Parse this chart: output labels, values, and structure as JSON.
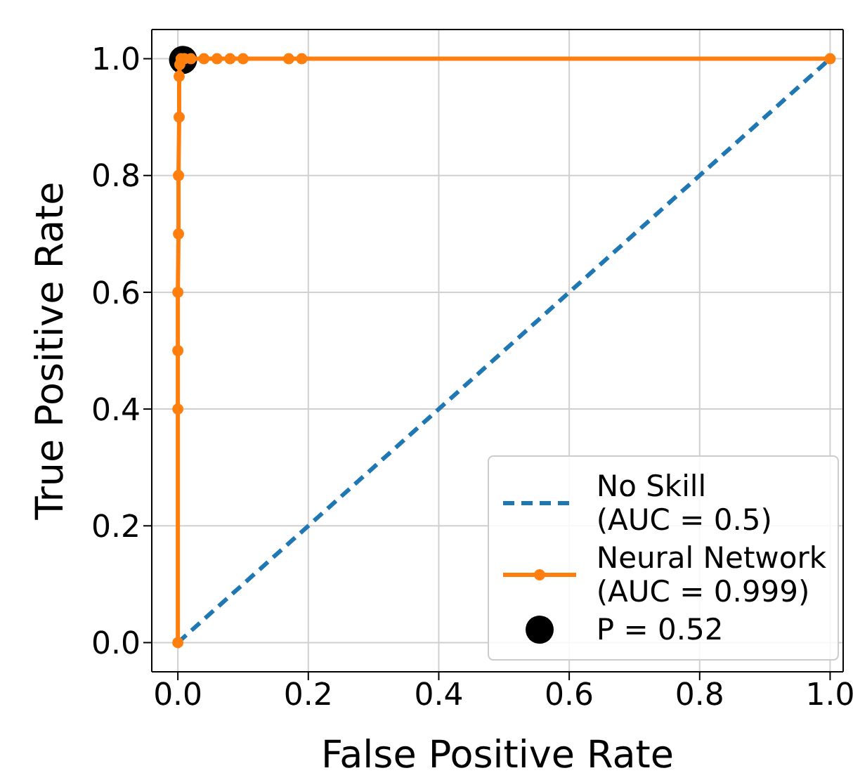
{
  "chart_data": {
    "type": "line",
    "xlabel": "False Positive Rate",
    "ylabel": "True Positive Rate",
    "xlim": [
      -0.04,
      1.02
    ],
    "ylim": [
      -0.05,
      1.05
    ],
    "xticks": [
      {
        "value": 0,
        "label": "0.0"
      },
      0.2,
      0.4,
      0.6,
      0.8,
      {
        "value": 1,
        "label": "1.0"
      }
    ],
    "yticks": [
      {
        "value": 0,
        "label": "0.0"
      },
      0.2,
      0.4,
      0.6,
      0.8,
      {
        "value": 1,
        "label": "1.0"
      }
    ],
    "grid": true,
    "legend": "bottom right",
    "series": [
      {
        "name": "No Skill\n(AUC = 0.5)",
        "color": "#1f77b4",
        "line_style": "dashed",
        "marker": "none",
        "x": [
          0,
          1
        ],
        "values": [
          0,
          1
        ]
      },
      {
        "name": "Neural Network\n(AUC = 0.999)",
        "color": "#ff7f0e",
        "line_style": "solid",
        "marker": "circle",
        "x": [
          0,
          0,
          0,
          0,
          0.001,
          0.001,
          0.002,
          0.002,
          0.003,
          0.005,
          0.01,
          0.02,
          0.04,
          0.06,
          0.08,
          0.1,
          0.17,
          0.19,
          1.0
        ],
        "values": [
          0,
          0.4,
          0.5,
          0.6,
          0.7,
          0.8,
          0.9,
          0.97,
          0.99,
          1,
          1,
          1,
          1,
          1,
          1,
          1,
          1,
          1,
          1
        ]
      },
      {
        "name": "P = 0.52",
        "type": "scatter",
        "color": "#000000",
        "marker": "circle",
        "x": [
          0.008
        ],
        "values": [
          0.998
        ]
      }
    ]
  }
}
